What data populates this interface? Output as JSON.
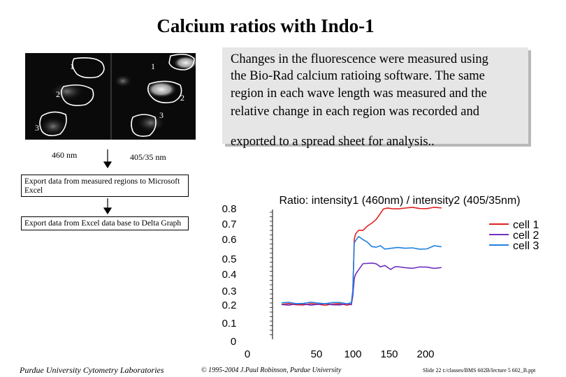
{
  "title": "Calcium ratios with Indo-1",
  "description": {
    "lines": [
      "Changes in the fluorescence were measured using",
      "the Bio-Rad calcium ratioing software.  The same",
      "region in each wave length was measured and the",
      "relative change in each region was recorded and",
      "exported to a spread sheet for analysis.."
    ]
  },
  "image_panel": {
    "region_labels": [
      "1",
      "1",
      "2",
      "2",
      "3",
      "3"
    ],
    "caption_left": "460 nm",
    "caption_right": "405/35 nm"
  },
  "flow": {
    "step1": "Export data from measured regions to Microsoft Excel",
    "step2": "Export data from Excel data base to Delta Graph"
  },
  "chart_data": {
    "type": "line",
    "title": "Ratio: intensity1 (460nm) / intensity2 (405/35nm)",
    "xlabel": "",
    "ylabel": "",
    "x_ticks": [
      0,
      50,
      100,
      150,
      200
    ],
    "y_ticks": [
      0,
      0.1,
      0.2,
      0.3,
      0.4,
      0.5,
      0.6,
      0.7,
      0.8
    ],
    "y_tick_labels": [
      "0",
      "0.1",
      "0.2",
      "0.3",
      "0.4",
      "0.5",
      "0.6",
      "0.7",
      "0.8"
    ],
    "legend_position": "top-right",
    "grid": false,
    "series": [
      {
        "name": "cell 1",
        "color": "#e02020",
        "points": [
          [
            0,
            0.2
          ],
          [
            10,
            0.2
          ],
          [
            20,
            0.2
          ],
          [
            30,
            0.2
          ],
          [
            40,
            0.2
          ],
          [
            50,
            0.2
          ],
          [
            60,
            0.2
          ],
          [
            70,
            0.2
          ],
          [
            80,
            0.2
          ],
          [
            90,
            0.2
          ],
          [
            96,
            0.2
          ],
          [
            98,
            0.28
          ],
          [
            100,
            0.6
          ],
          [
            102,
            0.63
          ],
          [
            106,
            0.65
          ],
          [
            112,
            0.66
          ],
          [
            118,
            0.68
          ],
          [
            124,
            0.7
          ],
          [
            130,
            0.73
          ],
          [
            136,
            0.76
          ],
          [
            140,
            0.79
          ],
          [
            146,
            0.81
          ],
          [
            152,
            0.81
          ],
          [
            160,
            0.8
          ],
          [
            170,
            0.8
          ],
          [
            180,
            0.81
          ],
          [
            190,
            0.8
          ],
          [
            200,
            0.81
          ],
          [
            210,
            0.8
          ],
          [
            220,
            0.8
          ]
        ]
      },
      {
        "name": "cell 2",
        "color": "#7030c0",
        "points": [
          [
            0,
            0.2
          ],
          [
            10,
            0.2
          ],
          [
            20,
            0.2
          ],
          [
            30,
            0.2
          ],
          [
            40,
            0.2
          ],
          [
            50,
            0.2
          ],
          [
            60,
            0.2
          ],
          [
            70,
            0.2
          ],
          [
            80,
            0.2
          ],
          [
            90,
            0.2
          ],
          [
            96,
            0.2
          ],
          [
            98,
            0.26
          ],
          [
            100,
            0.37
          ],
          [
            102,
            0.4
          ],
          [
            106,
            0.43
          ],
          [
            112,
            0.46
          ],
          [
            118,
            0.47
          ],
          [
            124,
            0.47
          ],
          [
            130,
            0.46
          ],
          [
            136,
            0.45
          ],
          [
            142,
            0.45
          ],
          [
            150,
            0.43
          ],
          [
            156,
            0.44
          ],
          [
            160,
            0.44
          ],
          [
            170,
            0.44
          ],
          [
            180,
            0.44
          ],
          [
            190,
            0.44
          ],
          [
            200,
            0.44
          ],
          [
            210,
            0.44
          ],
          [
            220,
            0.44
          ]
        ]
      },
      {
        "name": "cell 3",
        "color": "#2080e0",
        "points": [
          [
            0,
            0.21
          ],
          [
            10,
            0.21
          ],
          [
            20,
            0.21
          ],
          [
            30,
            0.21
          ],
          [
            40,
            0.21
          ],
          [
            50,
            0.21
          ],
          [
            60,
            0.21
          ],
          [
            70,
            0.21
          ],
          [
            80,
            0.21
          ],
          [
            90,
            0.21
          ],
          [
            96,
            0.21
          ],
          [
            98,
            0.3
          ],
          [
            100,
            0.58
          ],
          [
            102,
            0.59
          ],
          [
            106,
            0.61
          ],
          [
            112,
            0.6
          ],
          [
            118,
            0.58
          ],
          [
            124,
            0.56
          ],
          [
            130,
            0.56
          ],
          [
            136,
            0.56
          ],
          [
            142,
            0.55
          ],
          [
            150,
            0.55
          ],
          [
            160,
            0.56
          ],
          [
            170,
            0.55
          ],
          [
            180,
            0.55
          ],
          [
            190,
            0.55
          ],
          [
            200,
            0.55
          ],
          [
            210,
            0.56
          ],
          [
            220,
            0.56
          ]
        ]
      }
    ]
  },
  "footer": {
    "left": "Purdue University Cytometry Laboratories",
    "middle": "© 1995-2004 J.Paul Robinson, Purdue University",
    "right": "Slide 22 t:/classes/BMS 602B/lecture 5 602_B.ppt"
  }
}
